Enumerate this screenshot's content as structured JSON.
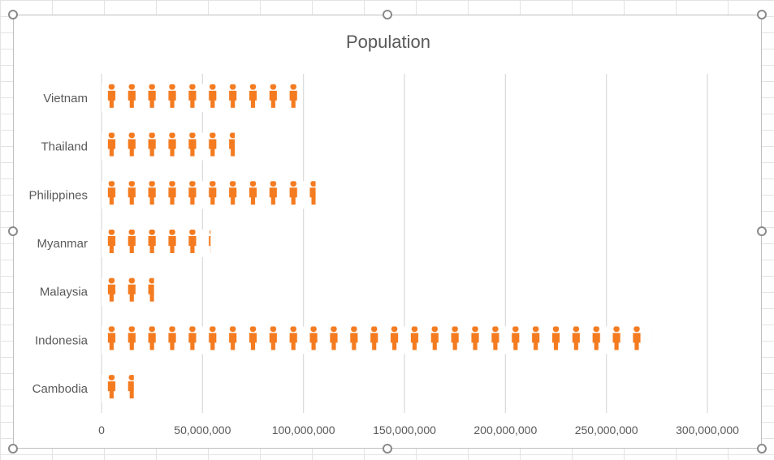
{
  "chart_data": {
    "type": "bar",
    "orientation": "horizontal",
    "title": "Population",
    "categories": [
      "Vietnam",
      "Thailand",
      "Philippines",
      "Myanmar",
      "Malaysia",
      "Indonesia",
      "Cambodia"
    ],
    "series": [
      {
        "values": [
          97000000,
          66000000,
          106000000,
          54000000,
          26000000,
          273000000,
          16000000
        ]
      }
    ],
    "xlim": [
      0,
      300000000
    ],
    "x_ticks": [
      "0",
      "50,000,000",
      "100,000,000",
      "150,000,000",
      "200,000,000",
      "250,000,000",
      "300,000,000"
    ],
    "grid": true,
    "legend": "none",
    "bar_fill": "stacked person icons, 1 icon = 10,000,000",
    "bar_color": "#f47b20",
    "icon": "person-icon"
  }
}
